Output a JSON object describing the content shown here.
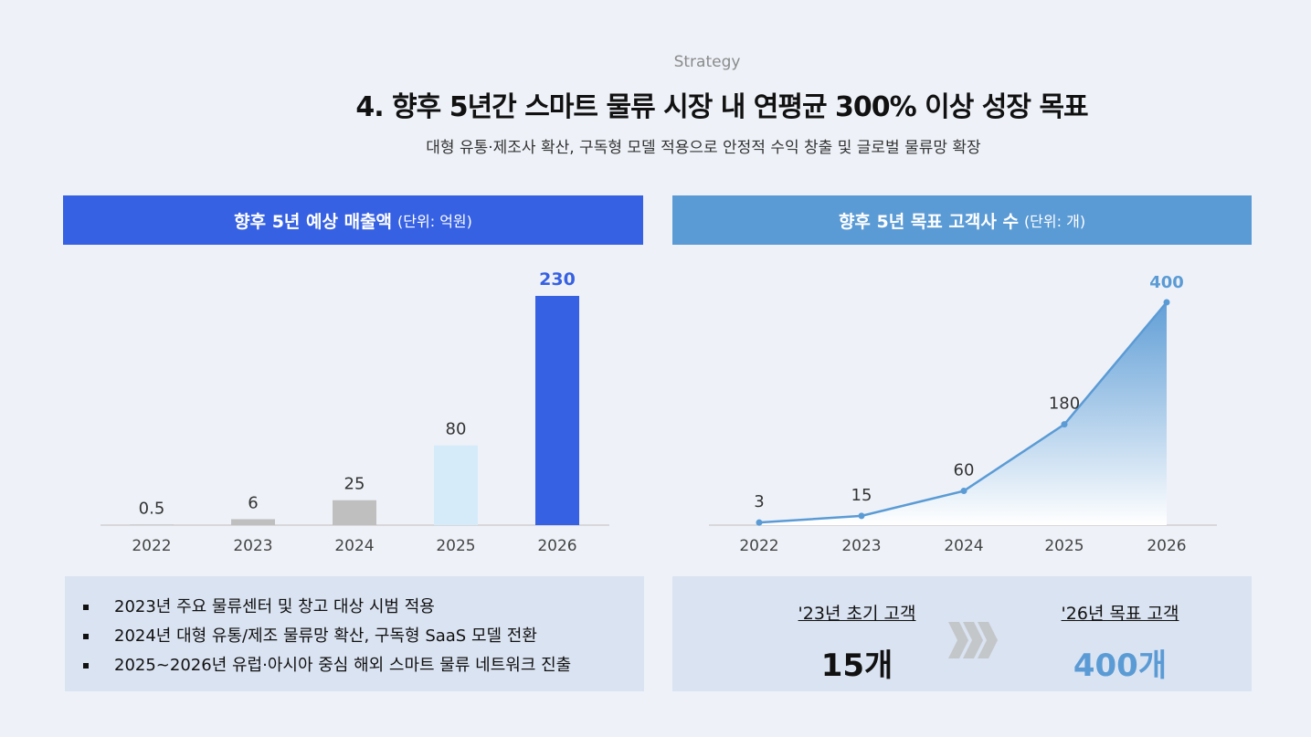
{
  "header": {
    "kicker": "Strategy",
    "title": "4. 향후 5년간 스마트 물류 시장 내 연평균 300% 이상 성장 목표",
    "subtitle": "대형 유통·제조사 확산, 구독형 모델 적용으로 안정적 수익 창출 및 글로벌 물류망 확장"
  },
  "chart_data": [
    {
      "type": "bar",
      "title": "향후 5년 예상 매출액",
      "unit": "(단위: 억원)",
      "categories": [
        "2022",
        "2023",
        "2024",
        "2025",
        "2026"
      ],
      "values": [
        0.5,
        6,
        25,
        80,
        230
      ],
      "colors": [
        "#BFBFBF",
        "#BFBFBF",
        "#BFBFBF",
        "#D6EBFA",
        "#3761E3"
      ],
      "grid": false
    },
    {
      "type": "area",
      "title": "향후 5년 목표 고객사 수",
      "unit": "(단위: 개)",
      "categories": [
        "2022",
        "2023",
        "2024",
        "2025",
        "2026"
      ],
      "values": [
        3,
        15,
        60,
        180,
        400
      ],
      "color": "#5B9BD5",
      "grid": false
    }
  ],
  "notes": [
    "2023년 주요 물류센터 및 창고 대상 시범 적용",
    "2024년 대형 유통/제조 물류망 확산, 구독형 SaaS 모델 전환",
    "2025~2026년 유럽·아시아 중심 해외 스마트 물류 네트워크 진출"
  ],
  "summary": {
    "from_label": "'23년 초기 고객",
    "from_value": "15개",
    "to_label": "'26년 목표 고객",
    "to_value": "400개",
    "arrow_icon": "triple-chevron-right-icon"
  }
}
